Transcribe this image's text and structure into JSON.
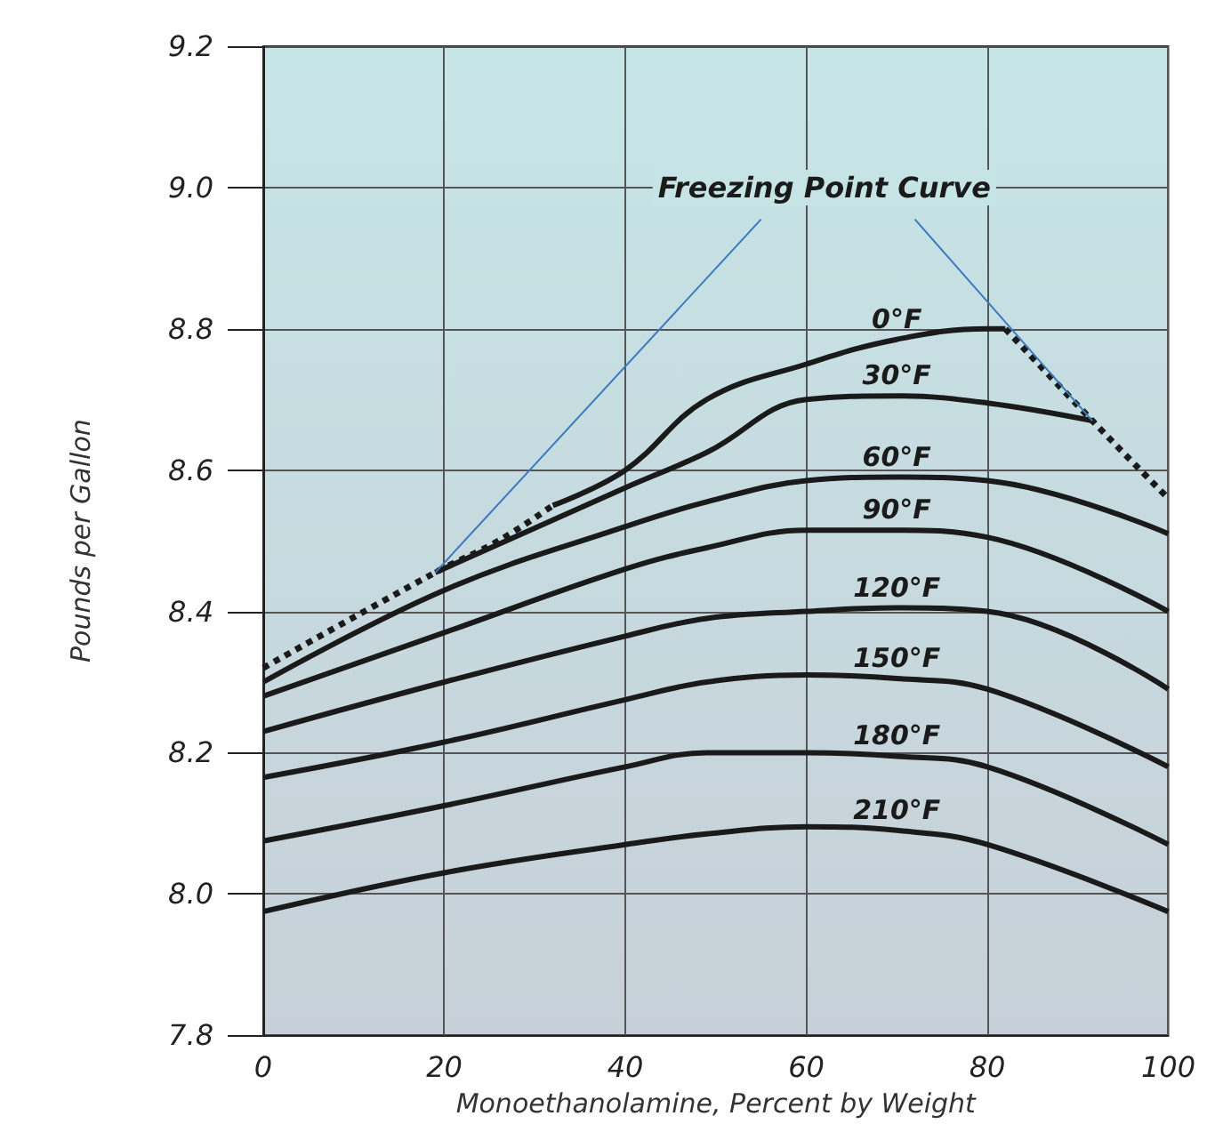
{
  "chart_data": {
    "type": "line",
    "xlabel": "Monoethanolamine, Percent by Weight",
    "ylabel": "Pounds per Gallon",
    "xlim": [
      0,
      100
    ],
    "xticks": [
      0,
      20,
      40,
      60,
      80,
      100
    ],
    "ylim": [
      7.8,
      9.2
    ],
    "yticks": [
      7.8,
      {
        "value": 8,
        "label": "8.0"
      },
      8.2,
      8.4,
      8.6,
      8.8,
      {
        "value": 9,
        "label": "9.0"
      },
      9.2
    ],
    "grid": true,
    "legend": false,
    "marker": "none",
    "series": [
      {
        "name": "Freezing Point Curve",
        "color": "#1a1a1a",
        "line_style": "dotted",
        "x": [
          0,
          19,
          26,
          32,
          50,
          82,
          91.6,
          100
        ],
        "values": [
          8.32,
          8.455,
          8.5,
          8.55,
          null,
          8.8,
          8.67,
          8.56
        ]
      },
      {
        "name": "0°F",
        "color": "#1a1a1a",
        "x": [
          32,
          40,
          49,
          60,
          70,
          80,
          82
        ],
        "values": [
          8.55,
          8.6,
          8.7,
          8.75,
          8.785,
          8.8,
          8.8
        ]
      },
      {
        "name": "30°F",
        "color": "#1a1a1a",
        "x": [
          19,
          40,
          49,
          60,
          70,
          80,
          91.6
        ],
        "values": [
          8.455,
          8.575,
          8.625,
          8.7,
          8.705,
          8.695,
          8.67
        ]
      },
      {
        "name": "60°F",
        "color": "#1a1a1a",
        "x": [
          0,
          20,
          40,
          49,
          60,
          70,
          80,
          100
        ],
        "values": [
          8.3,
          8.43,
          8.52,
          8.555,
          8.585,
          8.59,
          8.585,
          8.51
        ]
      },
      {
        "name": "90°F",
        "color": "#1a1a1a",
        "x": [
          0,
          20,
          40,
          49,
          60,
          70,
          80,
          100
        ],
        "values": [
          8.28,
          8.37,
          8.46,
          8.49,
          8.515,
          8.515,
          8.505,
          8.4
        ]
      },
      {
        "name": "120°F",
        "color": "#1a1a1a",
        "x": [
          0,
          20,
          40,
          49,
          60,
          70,
          80,
          100
        ],
        "values": [
          8.23,
          8.3,
          8.365,
          8.39,
          8.4,
          8.405,
          8.4,
          8.29
        ]
      },
      {
        "name": "150°F",
        "color": "#1a1a1a",
        "x": [
          0,
          20,
          40,
          49,
          60,
          70,
          80,
          100
        ],
        "values": [
          8.165,
          8.215,
          8.275,
          8.3,
          8.31,
          8.305,
          8.29,
          8.18
        ]
      },
      {
        "name": "180°F",
        "color": "#1a1a1a",
        "x": [
          0,
          20,
          40,
          49,
          60,
          70,
          80,
          100
        ],
        "values": [
          8.075,
          8.125,
          8.18,
          8.2,
          8.2,
          8.195,
          8.18,
          8.07
        ]
      },
      {
        "name": "210°F",
        "color": "#1a1a1a",
        "x": [
          0,
          20,
          40,
          49,
          60,
          70,
          80,
          100
        ],
        "values": [
          7.975,
          8.03,
          8.07,
          8.085,
          8.095,
          8.09,
          8.07,
          7.975
        ]
      }
    ]
  }
}
